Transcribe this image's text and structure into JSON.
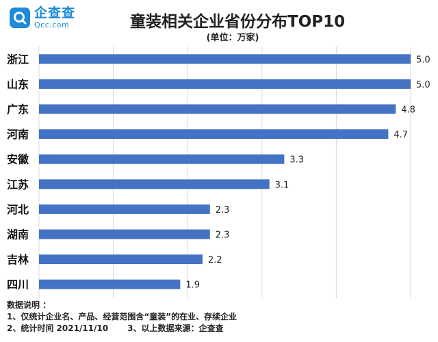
{
  "header": {
    "logo_cn": "企查查",
    "logo_en": "Qcc.com",
    "title": "童装相关企业省份分布TOP10",
    "subtitle": "(单位：万家)"
  },
  "colors": {
    "bar": "#4472c4",
    "grid": "#d9d9d9",
    "brand": "#1e8ad8"
  },
  "chart_data": {
    "type": "bar",
    "orientation": "horizontal",
    "categories": [
      "浙江",
      "山东",
      "广东",
      "河南",
      "安徽",
      "江苏",
      "河北",
      "湖南",
      "吉林",
      "四川"
    ],
    "values": [
      5.0,
      5.0,
      4.8,
      4.7,
      3.3,
      3.1,
      2.3,
      2.3,
      2.2,
      1.9
    ],
    "value_labels": [
      "5.0",
      "5.0",
      "4.8",
      "4.7",
      "3.3",
      "3.1",
      "2.3",
      "2.3",
      "2.2",
      "1.9"
    ],
    "xlim": [
      0,
      5
    ],
    "grid": true,
    "legend": "none"
  },
  "notes": {
    "heading": "数据说明  ：",
    "line1": "1、仅统计企业名、产品、经营范围含“童装”的在业、存续企业",
    "line2a": "2、统计时间  2021/11/10",
    "line2b": "3、以上数据来源：企查查"
  }
}
